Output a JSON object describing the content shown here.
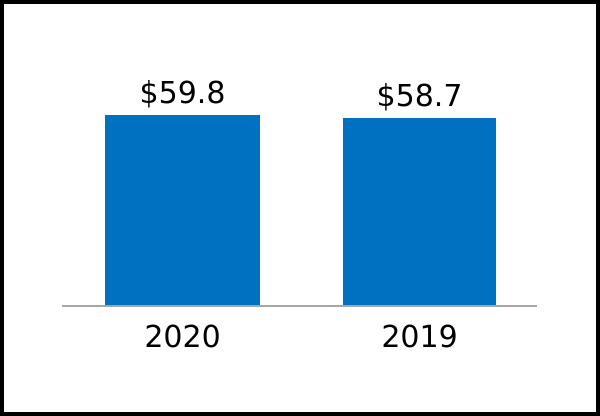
{
  "chart_data": {
    "type": "bar",
    "title": "",
    "categories": [
      "2020",
      "2019"
    ],
    "values": [
      59.8,
      58.7
    ],
    "data_labels": [
      "$59.8",
      "$58.7"
    ],
    "xlabel": "",
    "ylabel": "",
    "ylim": [
      0,
      62
    ],
    "grid": false,
    "legend": false,
    "bar_color": "#0070c0",
    "axis_line_color": "#a6a6a6",
    "label_color": "#000000",
    "frame_border_color": "#000000"
  }
}
